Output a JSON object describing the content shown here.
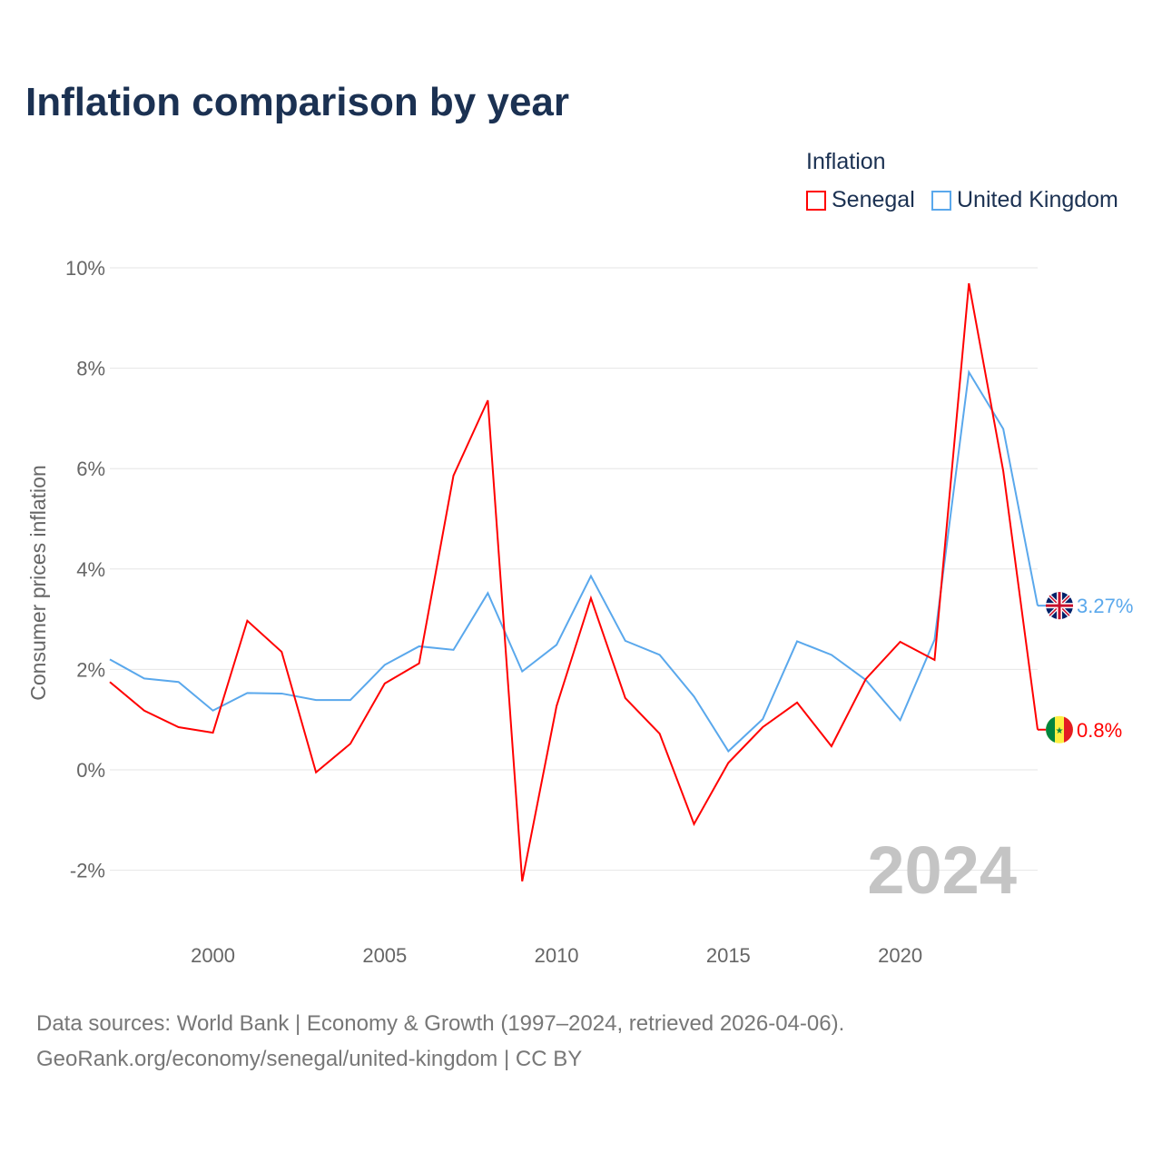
{
  "title": "Inflation comparison by year",
  "legend": {
    "title": "Inflation",
    "items": [
      {
        "label": "Senegal",
        "color": "#ff0000"
      },
      {
        "label": "United Kingdom",
        "color": "#5aa8ec"
      }
    ]
  },
  "footer": {
    "line1": "Data sources: World Bank | Economy & Growth (1997–2024, retrieved 2026-04-06).",
    "line2": "GeoRank.org/economy/senegal/united-kingdom | CC BY"
  },
  "chart_data": {
    "type": "line",
    "title": "Inflation comparison by year",
    "xlabel": "",
    "ylabel": "Consumer prices inflation",
    "ylim": [
      -2,
      10
    ],
    "xlim": [
      1997,
      2024
    ],
    "yticks": [
      "-2%",
      "0%",
      "2%",
      "4%",
      "6%",
      "8%",
      "10%"
    ],
    "ytick_values": [
      -2,
      0,
      2,
      4,
      6,
      8,
      10
    ],
    "xticks": [
      "2000",
      "2005",
      "2010",
      "2015",
      "2020"
    ],
    "xtick_values": [
      2000,
      2005,
      2010,
      2015,
      2020
    ],
    "year_watermark": "2024",
    "x": [
      1997,
      1998,
      1999,
      2000,
      2001,
      2002,
      2003,
      2004,
      2005,
      2006,
      2007,
      2008,
      2009,
      2010,
      2011,
      2012,
      2013,
      2014,
      2015,
      2016,
      2017,
      2018,
      2019,
      2020,
      2021,
      2022,
      2023,
      2024
    ],
    "series": [
      {
        "name": "Senegal",
        "color": "#ff0000",
        "end_label": "0.8%",
        "values": [
          1.75,
          1.18,
          0.85,
          0.74,
          2.97,
          2.35,
          -0.05,
          0.52,
          1.72,
          2.12,
          5.86,
          7.36,
          -2.22,
          1.27,
          3.42,
          1.43,
          0.72,
          -1.08,
          0.14,
          0.85,
          1.34,
          0.47,
          1.81,
          2.55,
          2.19,
          9.69,
          5.95,
          0.8
        ]
      },
      {
        "name": "United Kingdom",
        "color": "#5aa8ec",
        "end_label": "3.27%",
        "values": [
          2.2,
          1.82,
          1.75,
          1.18,
          1.53,
          1.52,
          1.39,
          1.39,
          2.09,
          2.46,
          2.39,
          3.52,
          1.96,
          2.49,
          3.86,
          2.57,
          2.29,
          1.46,
          0.37,
          1.01,
          2.56,
          2.29,
          1.79,
          0.99,
          2.59,
          7.92,
          6.79,
          3.27
        ]
      }
    ]
  }
}
